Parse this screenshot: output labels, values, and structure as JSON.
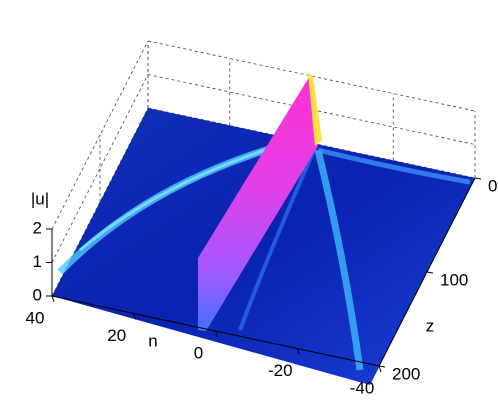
{
  "chart_data": {
    "type": "surface",
    "xlabel": "n",
    "ylabel": "z",
    "zlabel": "|u|",
    "xlim": [
      40,
      -40
    ],
    "xticks": [
      40,
      20,
      0,
      -20,
      -40
    ],
    "ylim": [
      0,
      200
    ],
    "yticks": [
      0,
      100,
      200
    ],
    "zlim": [
      0,
      2
    ],
    "zticks": [
      0,
      1,
      2
    ],
    "grid": true
  }
}
